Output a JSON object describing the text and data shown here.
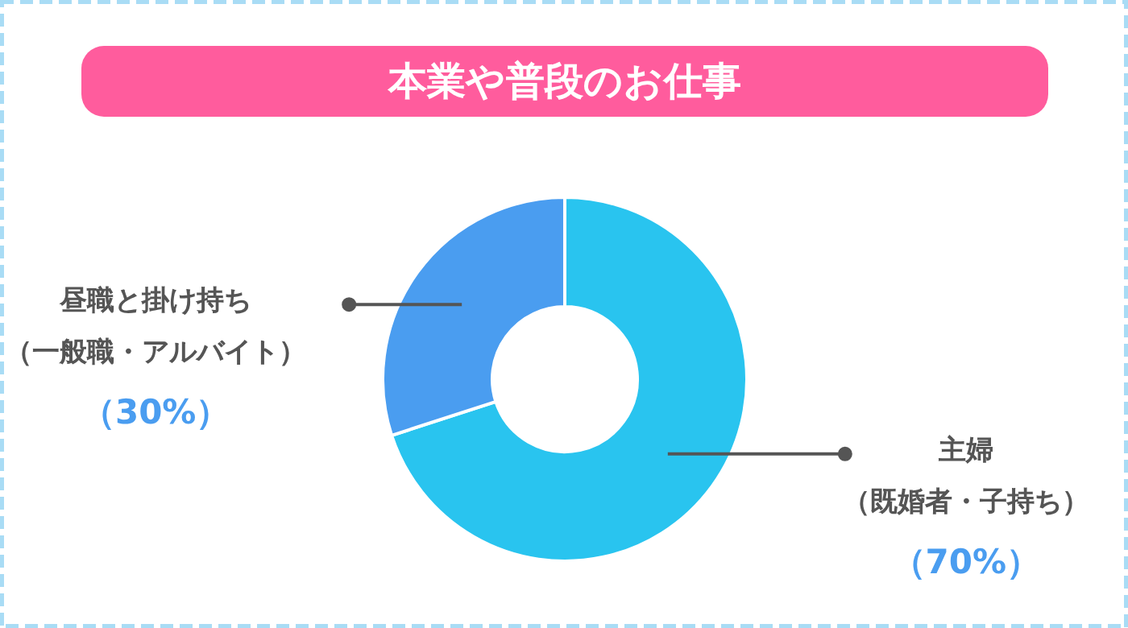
{
  "chart_data": {
    "type": "donut",
    "title": "本業や普段のお仕事",
    "categories": [
      "主婦（既婚者・子持ち）",
      "昼職と掛け持ち（一般職・アルバイト）"
    ],
    "values": [
      70,
      30
    ],
    "colors": [
      "#29c4ef",
      "#4a9df0"
    ],
    "value_labels": [
      "（70%）",
      "（30%）"
    ]
  }
}
